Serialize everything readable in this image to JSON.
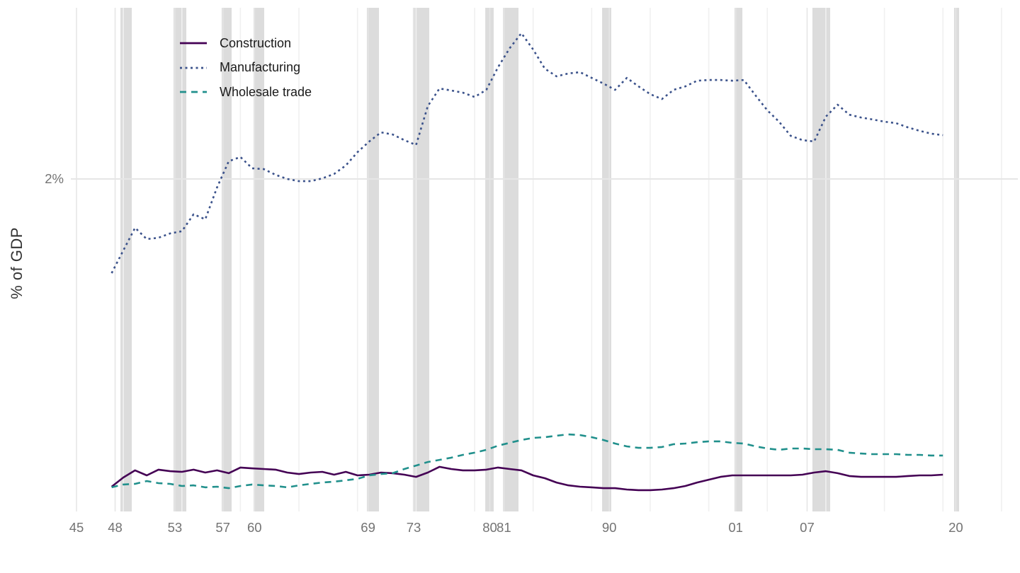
{
  "page": {
    "background": "#ffffff"
  },
  "chart_data": {
    "type": "line",
    "title": "",
    "xlabel": "",
    "ylabel": "% of GDP",
    "legend_position": "top-left",
    "grid": "light-gray major gridlines, recession shading bands",
    "x_range_years": [
      1943.4,
      2025.3
    ],
    "y_range_pct": [
      0,
      3.03
    ],
    "y_axis": {
      "ticks": [
        {
          "label": "2%",
          "value": 2
        }
      ]
    },
    "x_axis": {
      "ticks": [
        {
          "label": "45",
          "year": 1945.0
        },
        {
          "label": "48",
          "year": 1948.3
        },
        {
          "label": "53",
          "year": 1953.4
        },
        {
          "label": "57",
          "year": 1957.5
        },
        {
          "label": "60",
          "year": 1960.2
        },
        {
          "label": "69",
          "year": 1969.9
        },
        {
          "label": "73",
          "year": 1973.8
        },
        {
          "label": "80",
          "year": 1980.3
        },
        {
          "label": "81",
          "year": 1981.5
        },
        {
          "label": "90",
          "year": 1990.5
        },
        {
          "label": "01",
          "year": 2001.3
        },
        {
          "label": "07",
          "year": 2007.4
        },
        {
          "label": "20",
          "year": 2020.1
        }
      ]
    },
    "minor_gridline_years": [
      1949,
      1954,
      1959,
      1964,
      1969,
      1974,
      1979,
      1984,
      1989,
      1994,
      1999,
      2004,
      2009,
      2014,
      2019,
      2024
    ],
    "recession_bands": [
      {
        "start": 1948.75,
        "end": 1949.72
      },
      {
        "start": 1953.29,
        "end": 1954.38
      },
      {
        "start": 1957.4,
        "end": 1958.25
      },
      {
        "start": 1960.12,
        "end": 1961.03
      },
      {
        "start": 1969.8,
        "end": 1970.83
      },
      {
        "start": 1973.73,
        "end": 1975.13
      },
      {
        "start": 1979.91,
        "end": 1980.63
      },
      {
        "start": 1981.42,
        "end": 1982.75
      },
      {
        "start": 1989.89,
        "end": 1990.67
      },
      {
        "start": 2001.2,
        "end": 2001.87
      },
      {
        "start": 2007.85,
        "end": 2009.37
      },
      {
        "start": 2019.95,
        "end": 2020.38
      }
    ],
    "series": [
      {
        "name": "Construction",
        "color": "#440154",
        "style": "solid",
        "start_year": 1948,
        "values": [
          0.153,
          0.208,
          0.251,
          0.221,
          0.255,
          0.246,
          0.242,
          0.255,
          0.238,
          0.251,
          0.234,
          0.268,
          0.263,
          0.259,
          0.255,
          0.238,
          0.229,
          0.238,
          0.242,
          0.225,
          0.242,
          0.221,
          0.225,
          0.238,
          0.234,
          0.225,
          0.212,
          0.238,
          0.272,
          0.259,
          0.251,
          0.251,
          0.255,
          0.268,
          0.259,
          0.251,
          0.221,
          0.204,
          0.178,
          0.161,
          0.153,
          0.149,
          0.144,
          0.144,
          0.136,
          0.132,
          0.132,
          0.136,
          0.144,
          0.157,
          0.178,
          0.195,
          0.212,
          0.221,
          0.221,
          0.221,
          0.221,
          0.221,
          0.221,
          0.225,
          0.238,
          0.246,
          0.234,
          0.217,
          0.212,
          0.212,
          0.212,
          0.212,
          0.217,
          0.221,
          0.221,
          0.225
        ]
      },
      {
        "name": "Manufacturing",
        "color": "#3B528B",
        "style": "dotted",
        "start_year": 1948,
        "values": [
          1.435,
          1.571,
          1.707,
          1.639,
          1.647,
          1.673,
          1.686,
          1.788,
          1.758,
          1.949,
          2.106,
          2.132,
          2.064,
          2.059,
          2.025,
          2.0,
          1.987,
          1.987,
          2.004,
          2.03,
          2.081,
          2.161,
          2.225,
          2.28,
          2.267,
          2.233,
          2.204,
          2.437,
          2.543,
          2.531,
          2.518,
          2.492,
          2.535,
          2.671,
          2.785,
          2.875,
          2.777,
          2.662,
          2.616,
          2.633,
          2.641,
          2.607,
          2.573,
          2.535,
          2.607,
          2.556,
          2.509,
          2.48,
          2.535,
          2.556,
          2.59,
          2.594,
          2.594,
          2.59,
          2.594,
          2.501,
          2.412,
          2.344,
          2.259,
          2.233,
          2.225,
          2.374,
          2.446,
          2.386,
          2.369,
          2.357,
          2.344,
          2.335,
          2.31,
          2.289,
          2.272,
          2.263
        ]
      },
      {
        "name": "Wholesale trade",
        "color": "#21908C",
        "style": "dashed",
        "start_year": 1948,
        "values": [
          0.149,
          0.166,
          0.17,
          0.187,
          0.174,
          0.17,
          0.157,
          0.161,
          0.149,
          0.153,
          0.144,
          0.157,
          0.166,
          0.161,
          0.157,
          0.149,
          0.161,
          0.17,
          0.178,
          0.183,
          0.191,
          0.2,
          0.221,
          0.229,
          0.234,
          0.259,
          0.28,
          0.301,
          0.314,
          0.327,
          0.344,
          0.357,
          0.374,
          0.399,
          0.416,
          0.433,
          0.446,
          0.45,
          0.459,
          0.467,
          0.463,
          0.45,
          0.433,
          0.412,
          0.395,
          0.386,
          0.386,
          0.391,
          0.408,
          0.412,
          0.42,
          0.425,
          0.425,
          0.416,
          0.412,
          0.395,
          0.382,
          0.374,
          0.382,
          0.382,
          0.378,
          0.378,
          0.374,
          0.357,
          0.352,
          0.348,
          0.348,
          0.348,
          0.344,
          0.344,
          0.34,
          0.34
        ]
      }
    ],
    "colors": {
      "recession_band": "#dcdcdc",
      "major_gridline": "#e6e6e6",
      "minor_gridline": "#f0f0f0",
      "axis_text": "#737373",
      "legend_text": "#1a1a1a",
      "axis_title": "#333333"
    }
  }
}
